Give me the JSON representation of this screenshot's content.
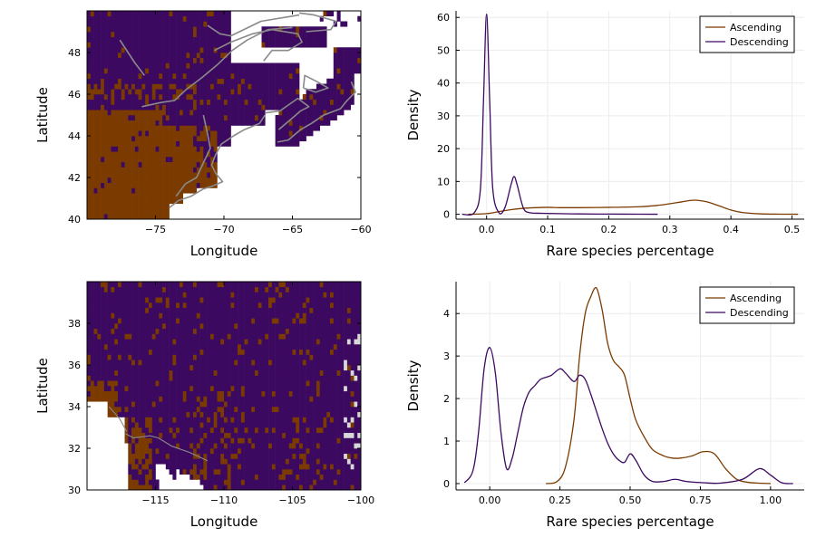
{
  "colors": {
    "presence": "#7b3b00",
    "absence": "#3c0960",
    "nodata": "#ffffff",
    "coast": "#8a8a8a",
    "ascending": "#7b3b00",
    "descending": "#3c0960",
    "grid": "#ececec",
    "axis": "#000000"
  },
  "chart_data": [
    {
      "type": "heatmap",
      "id": "map-northeast",
      "xlabel": "Longitude",
      "ylabel": "Latitude",
      "xlim": [
        -80,
        -60
      ],
      "ylim": [
        40,
        50
      ],
      "xticks": [
        -75,
        -70,
        -65,
        -60
      ],
      "xtick_labels": [
        "−75",
        "−70",
        "−65",
        "−60"
      ],
      "yticks": [
        40,
        42,
        44,
        46,
        48
      ],
      "ytick_labels": [
        "40",
        "42",
        "44",
        "46",
        "48"
      ],
      "grid": false,
      "legend": "none",
      "categories": [
        "presence",
        "absence",
        "no data"
      ]
    },
    {
      "type": "line",
      "id": "density-northeast",
      "xlabel": "Rare species percentage",
      "ylabel": "Density",
      "xlim": [
        -0.05,
        0.52
      ],
      "ylim": [
        -1.5,
        62
      ],
      "xticks": [
        0,
        0.1,
        0.2,
        0.3,
        0.4,
        0.5
      ],
      "xtick_labels": [
        "0.0",
        "0.1",
        "0.2",
        "0.3",
        "0.4",
        "0.5"
      ],
      "yticks": [
        0,
        10,
        20,
        30,
        40,
        50,
        60
      ],
      "ytick_labels": [
        "0",
        "10",
        "20",
        "30",
        "40",
        "50",
        "60"
      ],
      "grid": true,
      "legend": "top-right",
      "series": [
        {
          "name": "Ascending",
          "color": "#7b3b00",
          "x": [
            -0.03,
            0.0,
            0.02,
            0.04,
            0.06,
            0.08,
            0.1,
            0.12,
            0.15,
            0.2,
            0.25,
            0.28,
            0.3,
            0.32,
            0.34,
            0.36,
            0.38,
            0.4,
            0.42,
            0.45,
            0.48,
            0.51
          ],
          "y": [
            0,
            0.2,
            0.8,
            1.4,
            1.8,
            2.0,
            2.1,
            2.0,
            2.0,
            2.1,
            2.3,
            2.7,
            3.2,
            3.8,
            4.3,
            3.8,
            2.6,
            1.3,
            0.5,
            0.1,
            0.02,
            0
          ]
        },
        {
          "name": "Descending",
          "color": "#3c0960",
          "x": [
            -0.04,
            -0.02,
            -0.01,
            -0.005,
            0.0,
            0.005,
            0.01,
            0.02,
            0.03,
            0.04,
            0.045,
            0.05,
            0.06,
            0.07,
            0.09,
            0.12,
            0.15,
            0.2,
            0.25,
            0.28
          ],
          "y": [
            0,
            0.5,
            8,
            35,
            61,
            35,
            8,
            0.5,
            2,
            9,
            11.5,
            9,
            2,
            0.5,
            0.3,
            0.2,
            0.1,
            0.05,
            0.02,
            0
          ]
        }
      ]
    },
    {
      "type": "heatmap",
      "id": "map-southwest",
      "xlabel": "Longitude",
      "ylabel": "Latitude",
      "xlim": [
        -120,
        -100
      ],
      "ylim": [
        30,
        40
      ],
      "xticks": [
        -115,
        -110,
        -105,
        -100
      ],
      "xtick_labels": [
        "−115",
        "−110",
        "−105",
        "−100"
      ],
      "yticks": [
        30,
        32,
        34,
        36,
        38
      ],
      "ytick_labels": [
        "30",
        "32",
        "34",
        "36",
        "38"
      ],
      "grid": false,
      "legend": "none",
      "categories": [
        "presence",
        "absence",
        "no data"
      ]
    },
    {
      "type": "line",
      "id": "density-southwest",
      "xlabel": "Rare species percentage",
      "ylabel": "Density",
      "xlim": [
        -0.12,
        1.12
      ],
      "ylim": [
        -0.15,
        4.75
      ],
      "xticks": [
        0,
        0.25,
        0.5,
        0.75,
        1.0
      ],
      "xtick_labels": [
        "0.00",
        "0.25",
        "0.50",
        "0.75",
        "1.00"
      ],
      "yticks": [
        0,
        1,
        2,
        3,
        4
      ],
      "ytick_labels": [
        "0",
        "1",
        "2",
        "3",
        "4"
      ],
      "grid": true,
      "legend": "top-right",
      "series": [
        {
          "name": "Ascending",
          "color": "#7b3b00",
          "x": [
            0.2,
            0.24,
            0.27,
            0.3,
            0.32,
            0.34,
            0.36,
            0.38,
            0.4,
            0.42,
            0.44,
            0.46,
            0.48,
            0.5,
            0.52,
            0.55,
            0.58,
            0.62,
            0.65,
            0.68,
            0.72,
            0.76,
            0.8,
            0.84,
            0.88,
            0.92,
            0.96,
            1.0
          ],
          "y": [
            0,
            0.05,
            0.4,
            1.5,
            3.0,
            4.0,
            4.4,
            4.6,
            4.1,
            3.3,
            2.9,
            2.75,
            2.55,
            2.0,
            1.5,
            1.1,
            0.8,
            0.65,
            0.6,
            0.6,
            0.65,
            0.75,
            0.7,
            0.35,
            0.1,
            0.03,
            0.01,
            0
          ]
        },
        {
          "name": "Descending",
          "color": "#3c0960",
          "x": [
            -0.09,
            -0.06,
            -0.04,
            -0.02,
            0.0,
            0.02,
            0.04,
            0.06,
            0.08,
            0.1,
            0.12,
            0.14,
            0.16,
            0.18,
            0.2,
            0.22,
            0.25,
            0.27,
            0.3,
            0.32,
            0.34,
            0.36,
            0.38,
            0.4,
            0.42,
            0.44,
            0.46,
            0.48,
            0.5,
            0.52,
            0.55,
            0.58,
            0.62,
            0.66,
            0.7,
            0.76,
            0.82,
            0.9,
            0.96,
            1.0,
            1.04,
            1.08
          ],
          "y": [
            0.02,
            0.3,
            1.2,
            2.7,
            3.2,
            2.6,
            1.2,
            0.35,
            0.6,
            1.2,
            1.8,
            2.15,
            2.3,
            2.45,
            2.5,
            2.55,
            2.7,
            2.6,
            2.4,
            2.55,
            2.45,
            2.1,
            1.7,
            1.3,
            0.95,
            0.7,
            0.55,
            0.5,
            0.7,
            0.55,
            0.2,
            0.05,
            0.05,
            0.1,
            0.05,
            0.02,
            0.01,
            0.1,
            0.35,
            0.2,
            0.02,
            0
          ]
        }
      ]
    }
  ]
}
